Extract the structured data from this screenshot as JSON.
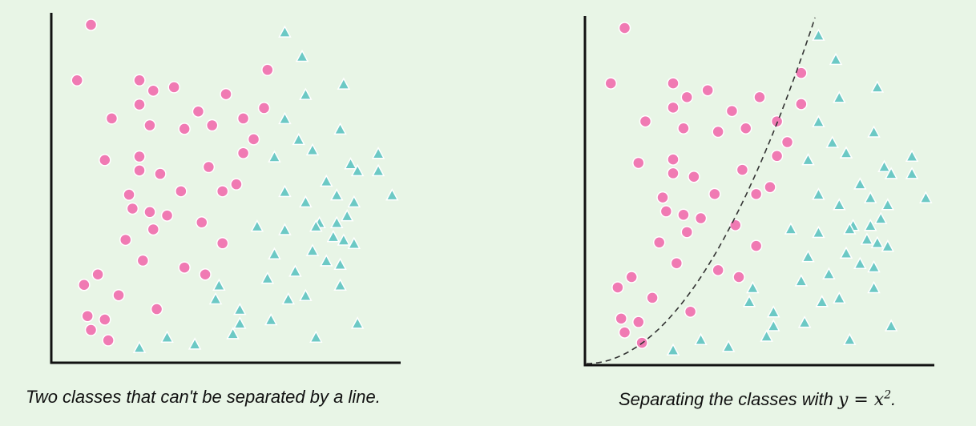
{
  "colors": {
    "background": "#e8f5e6",
    "class_a": "#f07ab3",
    "class_b": "#6cc9c5",
    "axis": "#111111",
    "boundary": "#333333"
  },
  "chart_data": [
    {
      "type": "scatter",
      "caption": "Two classes that can't be separated by a line.",
      "xlim": [
        0,
        100
      ],
      "ylim": [
        0,
        100
      ],
      "series": [
        {
          "marker": "circle",
          "color": "#f07ab3",
          "points": [
            [
              11,
              97
            ],
            [
              7,
              81
            ],
            [
              25,
              81
            ],
            [
              29,
              78
            ],
            [
              35,
              79
            ],
            [
              42,
              72
            ],
            [
              50,
              77
            ],
            [
              61,
              73
            ],
            [
              62,
              84
            ],
            [
              17,
              70
            ],
            [
              28,
              68
            ],
            [
              25,
              74
            ],
            [
              38,
              67
            ],
            [
              46,
              68
            ],
            [
              55,
              70
            ],
            [
              58,
              64
            ],
            [
              55,
              60
            ],
            [
              15,
              58
            ],
            [
              25,
              59
            ],
            [
              25,
              55
            ],
            [
              31,
              54
            ],
            [
              45,
              56
            ],
            [
              22,
              48
            ],
            [
              37,
              49
            ],
            [
              49,
              49
            ],
            [
              53,
              51
            ],
            [
              23,
              44
            ],
            [
              28,
              43
            ],
            [
              33,
              42
            ],
            [
              43,
              40
            ],
            [
              29,
              38
            ],
            [
              21,
              35
            ],
            [
              49,
              34
            ],
            [
              26,
              29
            ],
            [
              38,
              27
            ],
            [
              44,
              25
            ],
            [
              13,
              25
            ],
            [
              9,
              22
            ],
            [
              19,
              19
            ],
            [
              30,
              15
            ],
            [
              10,
              13
            ],
            [
              15,
              12
            ],
            [
              11,
              9
            ],
            [
              16,
              6
            ]
          ]
        },
        {
          "marker": "triangle",
          "color": "#6cc9c5",
          "points": [
            [
              67,
              95
            ],
            [
              72,
              88
            ],
            [
              84,
              80
            ],
            [
              73,
              77
            ],
            [
              67,
              70
            ],
            [
              83,
              67
            ],
            [
              71,
              64
            ],
            [
              75,
              61
            ],
            [
              64,
              59
            ],
            [
              94,
              60
            ],
            [
              86,
              57
            ],
            [
              94,
              55
            ],
            [
              88,
              55
            ],
            [
              79,
              52
            ],
            [
              67,
              49
            ],
            [
              73,
              46
            ],
            [
              82,
              48
            ],
            [
              98,
              48
            ],
            [
              87,
              46
            ],
            [
              77,
              40
            ],
            [
              82,
              40
            ],
            [
              85,
              42
            ],
            [
              59,
              39
            ],
            [
              67,
              38
            ],
            [
              76,
              39
            ],
            [
              81,
              36
            ],
            [
              84,
              35
            ],
            [
              87,
              34
            ],
            [
              64,
              31
            ],
            [
              75,
              32
            ],
            [
              79,
              29
            ],
            [
              83,
              28
            ],
            [
              70,
              26
            ],
            [
              62,
              24
            ],
            [
              83,
              22
            ],
            [
              48,
              22
            ],
            [
              73,
              19
            ],
            [
              68,
              18
            ],
            [
              47,
              18
            ],
            [
              54,
              15
            ],
            [
              63,
              12
            ],
            [
              54,
              11
            ],
            [
              88,
              11
            ],
            [
              52,
              8
            ],
            [
              33,
              7
            ],
            [
              76,
              7
            ],
            [
              25,
              4
            ],
            [
              41,
              5
            ]
          ]
        }
      ]
    },
    {
      "type": "scatter",
      "caption_prefix": "Separating the classes with ",
      "caption_math": "y = x",
      "caption_sup": "2",
      "caption_suffix": ".",
      "xlim": [
        0,
        100
      ],
      "ylim": [
        0,
        100
      ],
      "boundary": {
        "equation": "y = x^2",
        "style": "dashed",
        "x_start": 0,
        "x_end": 66
      },
      "series": [
        {
          "marker": "circle",
          "color": "#f07ab3",
          "points": [
            [
              11,
              97
            ],
            [
              7,
              81
            ],
            [
              25,
              81
            ],
            [
              29,
              77
            ],
            [
              35,
              79
            ],
            [
              42,
              73
            ],
            [
              50,
              77
            ],
            [
              62,
              75
            ],
            [
              62,
              84
            ],
            [
              17,
              70
            ],
            [
              28,
              68
            ],
            [
              25,
              74
            ],
            [
              38,
              67
            ],
            [
              46,
              68
            ],
            [
              55,
              70
            ],
            [
              58,
              64
            ],
            [
              55,
              60
            ],
            [
              15,
              58
            ],
            [
              25,
              59
            ],
            [
              25,
              55
            ],
            [
              31,
              54
            ],
            [
              45,
              56
            ],
            [
              22,
              48
            ],
            [
              37,
              49
            ],
            [
              49,
              49
            ],
            [
              53,
              51
            ],
            [
              23,
              44
            ],
            [
              28,
              43
            ],
            [
              33,
              42
            ],
            [
              43,
              40
            ],
            [
              29,
              38
            ],
            [
              21,
              35
            ],
            [
              49,
              34
            ],
            [
              26,
              29
            ],
            [
              38,
              27
            ],
            [
              44,
              25
            ],
            [
              13,
              25
            ],
            [
              9,
              22
            ],
            [
              19,
              19
            ],
            [
              30,
              15
            ],
            [
              10,
              13
            ],
            [
              15,
              12
            ],
            [
              11,
              9
            ],
            [
              16,
              6
            ]
          ]
        },
        {
          "marker": "triangle",
          "color": "#6cc9c5",
          "points": [
            [
              67,
              95
            ],
            [
              72,
              88
            ],
            [
              84,
              80
            ],
            [
              73,
              77
            ],
            [
              67,
              70
            ],
            [
              83,
              67
            ],
            [
              71,
              64
            ],
            [
              75,
              61
            ],
            [
              64,
              59
            ],
            [
              94,
              60
            ],
            [
              86,
              57
            ],
            [
              94,
              55
            ],
            [
              88,
              55
            ],
            [
              79,
              52
            ],
            [
              67,
              49
            ],
            [
              73,
              46
            ],
            [
              82,
              48
            ],
            [
              98,
              48
            ],
            [
              87,
              46
            ],
            [
              77,
              40
            ],
            [
              82,
              40
            ],
            [
              85,
              42
            ],
            [
              59,
              39
            ],
            [
              67,
              38
            ],
            [
              76,
              39
            ],
            [
              81,
              36
            ],
            [
              84,
              35
            ],
            [
              87,
              34
            ],
            [
              64,
              31
            ],
            [
              75,
              32
            ],
            [
              79,
              29
            ],
            [
              83,
              28
            ],
            [
              70,
              26
            ],
            [
              62,
              24
            ],
            [
              83,
              22
            ],
            [
              48,
              22
            ],
            [
              73,
              19
            ],
            [
              68,
              18
            ],
            [
              47,
              18
            ],
            [
              54,
              15
            ],
            [
              63,
              12
            ],
            [
              54,
              11
            ],
            [
              88,
              11
            ],
            [
              52,
              8
            ],
            [
              33,
              7
            ],
            [
              76,
              7
            ],
            [
              25,
              4
            ],
            [
              41,
              5
            ]
          ]
        }
      ]
    }
  ]
}
